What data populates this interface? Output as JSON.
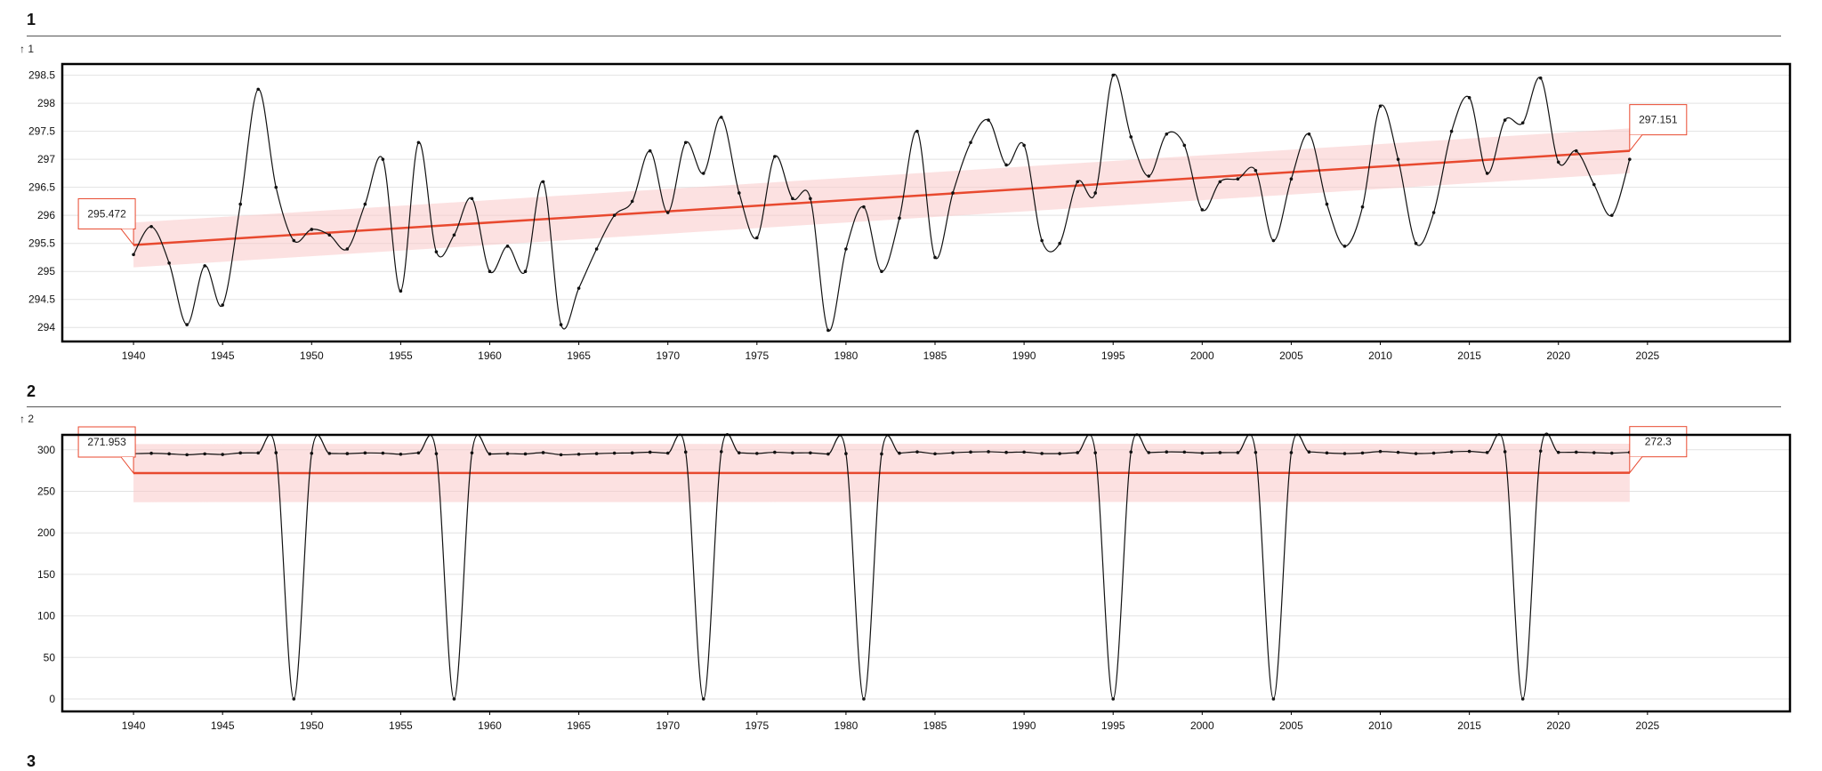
{
  "sections": [
    {
      "number": "1",
      "unit_label": "↑ 1"
    },
    {
      "number": "2",
      "unit_label": "↑ 2"
    },
    {
      "number": "3"
    }
  ],
  "colors": {
    "series": "#111111",
    "trend": "#e8492f",
    "band": "#f9c9c9",
    "frame": "#000000",
    "grid": "#e2e2e2"
  },
  "chart_data": [
    {
      "type": "line",
      "x": [
        1940,
        1941,
        1942,
        1943,
        1944,
        1945,
        1946,
        1947,
        1948,
        1949,
        1950,
        1951,
        1952,
        1953,
        1954,
        1955,
        1956,
        1957,
        1958,
        1959,
        1960,
        1961,
        1962,
        1963,
        1964,
        1965,
        1966,
        1967,
        1968,
        1969,
        1970,
        1971,
        1972,
        1973,
        1974,
        1975,
        1976,
        1977,
        1978,
        1979,
        1980,
        1981,
        1982,
        1983,
        1984,
        1985,
        1986,
        1987,
        1988,
        1989,
        1990,
        1991,
        1992,
        1993,
        1994,
        1995,
        1996,
        1997,
        1998,
        1999,
        2000,
        2001,
        2002,
        2003,
        2004,
        2005,
        2006,
        2007,
        2008,
        2009,
        2010,
        2011,
        2012,
        2013,
        2014,
        2015,
        2016,
        2017,
        2018,
        2019,
        2020,
        2021,
        2022,
        2023,
        2024
      ],
      "series": [
        {
          "values": [
            295.3,
            295.8,
            295.15,
            294.05,
            295.1,
            294.4,
            296.2,
            298.25,
            296.5,
            295.55,
            295.75,
            295.65,
            295.4,
            296.2,
            297.0,
            294.65,
            297.3,
            295.35,
            295.65,
            296.3,
            295.0,
            295.45,
            295.0,
            296.6,
            294.05,
            294.7,
            295.4,
            296.0,
            296.25,
            297.15,
            296.05,
            297.3,
            296.75,
            297.75,
            296.4,
            295.6,
            297.05,
            296.3,
            296.3,
            293.95,
            295.4,
            296.15,
            295.0,
            295.95,
            297.5,
            295.25,
            296.4,
            297.3,
            297.7,
            296.9,
            297.25,
            295.55,
            295.5,
            296.6,
            296.4,
            298.5,
            297.4,
            296.7,
            297.45,
            297.25,
            296.1,
            296.6,
            296.65,
            296.8,
            295.55,
            296.65,
            297.45,
            296.2,
            295.45,
            296.15,
            297.95,
            297.0,
            295.5,
            296.05,
            297.5,
            298.1,
            296.75,
            297.7,
            297.65,
            298.45,
            296.95,
            297.15,
            296.55,
            296.0,
            297.0
          ]
        }
      ],
      "trend": {
        "start": 295.472,
        "end": 297.151,
        "start_label": "295.472",
        "end_label": "297.151",
        "band_half_width": 0.4
      },
      "y_ticks": [
        "294",
        "294.5",
        "295",
        "295.5",
        "296",
        "296.5",
        "297",
        "297.5",
        "298",
        "298.5"
      ],
      "x_ticks": [
        "1940",
        "1945",
        "1950",
        "1955",
        "1960",
        "1965",
        "1970",
        "1975",
        "1980",
        "1985",
        "1990",
        "1995",
        "2000",
        "2005",
        "2010",
        "2015",
        "2020",
        "2025"
      ],
      "ylim": [
        293.75,
        298.7
      ],
      "xlim": [
        1936,
        2033
      ],
      "grid": true
    },
    {
      "type": "line",
      "x": [
        1940,
        1941,
        1942,
        1943,
        1944,
        1945,
        1946,
        1947,
        1948,
        1949,
        1950,
        1951,
        1952,
        1953,
        1954,
        1955,
        1956,
        1957,
        1958,
        1959,
        1960,
        1961,
        1962,
        1963,
        1964,
        1965,
        1966,
        1967,
        1968,
        1969,
        1970,
        1971,
        1972,
        1973,
        1974,
        1975,
        1976,
        1977,
        1978,
        1979,
        1980,
        1981,
        1982,
        1983,
        1984,
        1985,
        1986,
        1987,
        1988,
        1989,
        1990,
        1991,
        1992,
        1993,
        1994,
        1995,
        1996,
        1997,
        1998,
        1999,
        2000,
        2001,
        2002,
        2003,
        2004,
        2005,
        2006,
        2007,
        2008,
        2009,
        2010,
        2011,
        2012,
        2013,
        2014,
        2015,
        2016,
        2017,
        2018,
        2019,
        2020,
        2021,
        2022,
        2023,
        2024
      ],
      "series": [
        {
          "values": [
            295.3,
            295.8,
            295.15,
            294.05,
            295.1,
            294.4,
            296.2,
            296.25,
            296.5,
            0,
            295.75,
            295.65,
            295.4,
            296.2,
            296.0,
            294.65,
            296.3,
            295.35,
            0,
            296.3,
            295.0,
            295.45,
            295.0,
            296.6,
            294.05,
            294.7,
            295.4,
            296.0,
            296.25,
            297.15,
            296.05,
            297.3,
            0,
            297.75,
            296.4,
            295.6,
            297.05,
            296.3,
            296.3,
            294.95,
            295.4,
            0,
            295.0,
            295.95,
            297.5,
            295.25,
            296.4,
            297.3,
            297.7,
            296.9,
            297.25,
            295.55,
            295.5,
            296.6,
            296.4,
            0,
            297.4,
            296.7,
            297.45,
            297.25,
            296.1,
            296.6,
            296.65,
            296.8,
            0,
            296.65,
            297.45,
            296.2,
            295.45,
            296.15,
            297.95,
            297.0,
            295.5,
            296.05,
            297.5,
            298.1,
            296.75,
            297.7,
            0,
            298.45,
            296.95,
            297.15,
            296.55,
            296.0,
            297.0
          ]
        }
      ],
      "trend": {
        "start": 271.953,
        "end": 272.3,
        "start_label": "271.953",
        "end_label": "272.3",
        "band_half_width": 35
      },
      "y_ticks": [
        "0",
        "50",
        "100",
        "150",
        "200",
        "250",
        "300"
      ],
      "x_ticks": [
        "1940",
        "1945",
        "1950",
        "1955",
        "1960",
        "1965",
        "1970",
        "1975",
        "1980",
        "1985",
        "1990",
        "1995",
        "2000",
        "2005",
        "2010",
        "2015",
        "2020",
        "2025"
      ],
      "ylim": [
        -15,
        318
      ],
      "xlim": [
        1936,
        2033
      ],
      "grid": true
    }
  ]
}
